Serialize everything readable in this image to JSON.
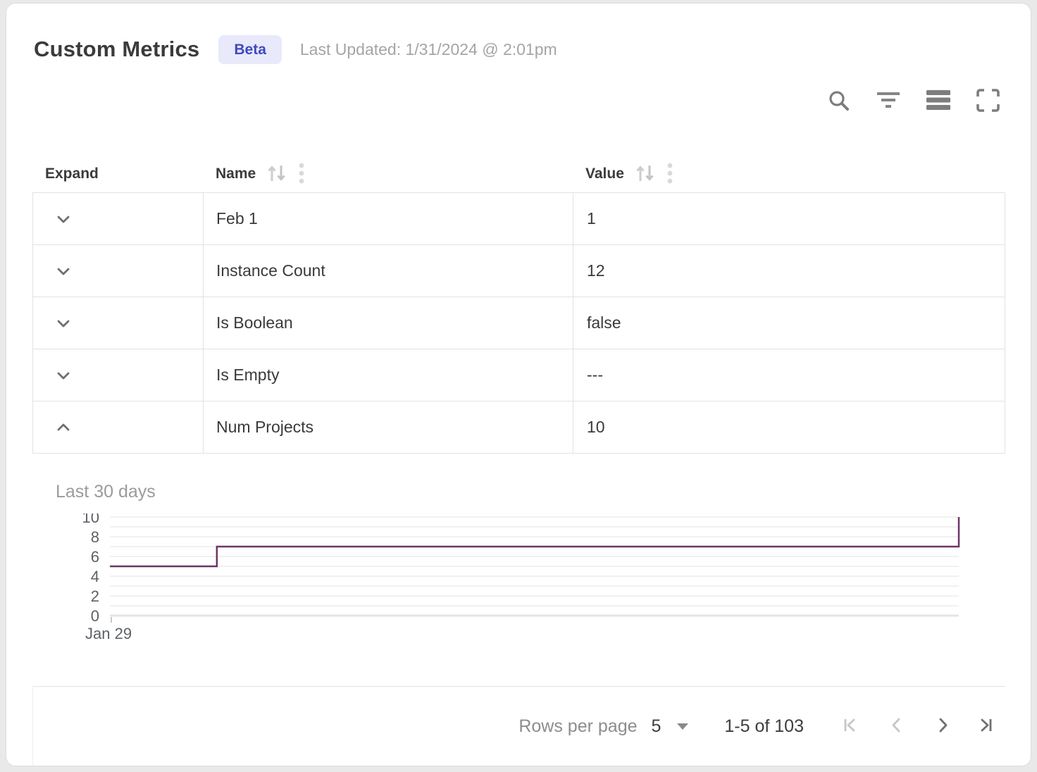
{
  "header": {
    "title": "Custom Metrics",
    "badge": "Beta",
    "last_updated": "Last Updated: 1/31/2024 @ 2:01pm"
  },
  "toolbar": {
    "icons": [
      "search",
      "filter",
      "density",
      "fullscreen"
    ]
  },
  "table": {
    "columns": [
      {
        "label": "Expand",
        "sortable": false
      },
      {
        "label": "Name",
        "sortable": true
      },
      {
        "label": "Value",
        "sortable": true
      }
    ],
    "rows": [
      {
        "name": "Feb 1",
        "value": "1",
        "expanded": false
      },
      {
        "name": "Instance Count",
        "value": "12",
        "expanded": false
      },
      {
        "name": "Is Boolean",
        "value": "false",
        "expanded": false
      },
      {
        "name": "Is Empty",
        "value": "---",
        "expanded": false
      },
      {
        "name": "Num Projects",
        "value": "10",
        "expanded": true
      }
    ]
  },
  "chart_data": {
    "type": "line",
    "title": "Last 30 days",
    "step": true,
    "x_start_label": "Jan 29",
    "x_span_days": 30,
    "ylim": [
      0,
      10
    ],
    "yticks": [
      0,
      2,
      4,
      6,
      8,
      10
    ],
    "grid": "horizontal-every-1",
    "line_color": "#6e3566",
    "points": [
      [
        0,
        5
      ],
      [
        0.126,
        5
      ],
      [
        0.126,
        7
      ],
      [
        1,
        7
      ],
      [
        1,
        10
      ]
    ]
  },
  "footer": {
    "rows_per_page_label": "Rows per page",
    "rows_per_page_value": "5",
    "range_label": "1-5 of 103",
    "pager": {
      "first_disabled": true,
      "prev_disabled": true,
      "next_disabled": false,
      "last_disabled": false
    }
  },
  "colors": {
    "badge_bg": "#e8e9fb",
    "badge_text": "#4149bd",
    "chart_line": "#6e3566",
    "border": "#e2e2e2",
    "icon_gray": "#7d7d7d"
  }
}
